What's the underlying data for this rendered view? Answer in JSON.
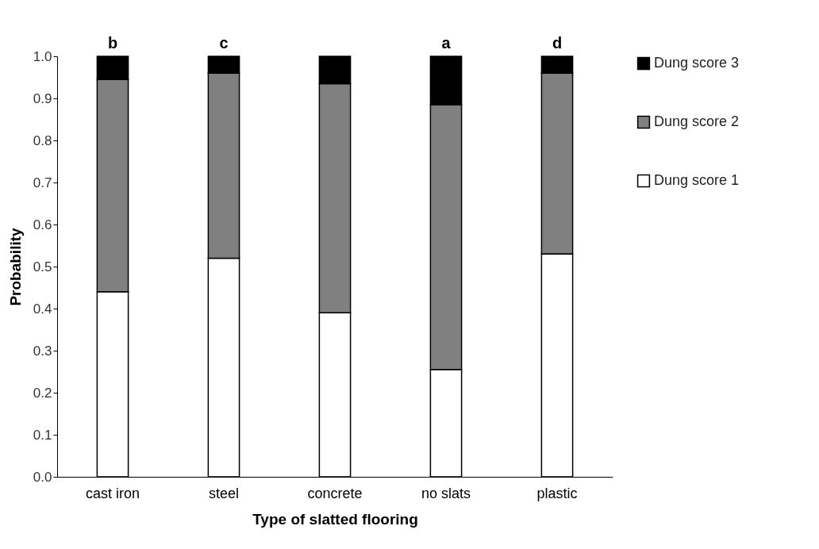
{
  "chart_data": {
    "type": "bar",
    "stacked": true,
    "xlabel": "Type of slatted flooring",
    "ylabel": "Probability",
    "categories": [
      "cast iron",
      "steel",
      "concrete",
      "no slats",
      "plastic"
    ],
    "series": [
      {
        "name": "Dung score 1",
        "color": "#ffffff",
        "values": [
          0.44,
          0.52,
          0.39,
          0.255,
          0.53
        ]
      },
      {
        "name": "Dung score 2",
        "color": "#808080",
        "values": [
          0.505,
          0.44,
          0.545,
          0.63,
          0.43
        ]
      },
      {
        "name": "Dung score 3",
        "color": "#000000",
        "values": [
          0.055,
          0.04,
          0.065,
          0.115,
          0.04
        ]
      }
    ],
    "ylim": [
      0,
      1
    ],
    "yticks": [
      {
        "value": 0,
        "label": "0.0"
      },
      {
        "value": 0.1,
        "label": "0.1"
      },
      {
        "value": 0.2,
        "label": "0.2"
      },
      {
        "value": 0.3,
        "label": "0.3"
      },
      {
        "value": 0.4,
        "label": "0.4"
      },
      {
        "value": 0.5,
        "label": "0.5"
      },
      {
        "value": 0.6,
        "label": "0.6"
      },
      {
        "value": 0.7,
        "label": "0.7"
      },
      {
        "value": 0.8,
        "label": "0.8"
      },
      {
        "value": 0.9,
        "label": "0.9"
      },
      {
        "value": 1,
        "label": "1.0"
      }
    ],
    "grid": false,
    "legend": "right",
    "annotations": [
      {
        "text": "b",
        "x": "cast iron",
        "y": 1
      },
      {
        "text": "c",
        "x": "steel",
        "y": 1
      },
      {
        "text": "d",
        "x": "plastic",
        "y": 1
      },
      {
        "text": "a",
        "x": "no slats",
        "y": 1
      }
    ]
  }
}
